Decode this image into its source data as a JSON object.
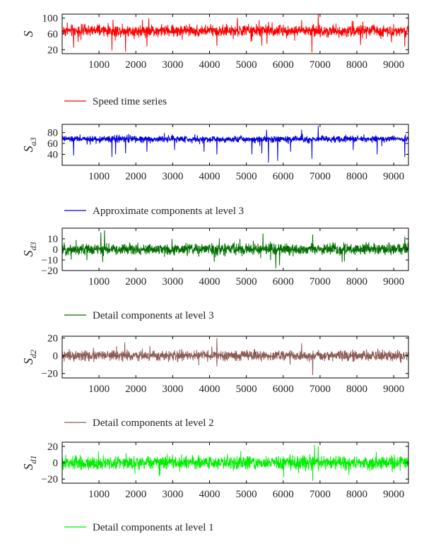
{
  "chart_data": [
    {
      "type": "line",
      "ylabel": "S",
      "ylabel_sub": "",
      "legend": "Speed time series",
      "color": "#ff0000",
      "xlim": [
        0,
        9400
      ],
      "ylim": [
        10,
        110
      ],
      "xticks": [
        1000,
        2000,
        3000,
        4000,
        5000,
        6000,
        7000,
        8000,
        9000
      ],
      "yticks": [
        20,
        60,
        100
      ],
      "signal": {
        "n": 9400,
        "mean": 68,
        "noise": 9,
        "dips": [
          [
            310,
            25
          ],
          [
            1350,
            18
          ],
          [
            1720,
            15
          ],
          [
            2300,
            28
          ],
          [
            4200,
            30
          ],
          [
            5420,
            30
          ],
          [
            5560,
            35
          ],
          [
            6780,
            13
          ],
          [
            8100,
            32
          ],
          [
            9300,
            28
          ]
        ],
        "spikes": [
          [
            5600,
            90
          ],
          [
            6500,
            95
          ],
          [
            6950,
            110
          ]
        ]
      }
    },
    {
      "type": "line",
      "ylabel": "S",
      "ylabel_sub": "a3",
      "legend": "Approximate components at level 3",
      "color": "#0000dd",
      "xlim": [
        0,
        9400
      ],
      "ylim": [
        20,
        95
      ],
      "xticks": [
        1000,
        2000,
        3000,
        4000,
        5000,
        6000,
        7000,
        8000,
        9000
      ],
      "yticks": [
        40,
        60,
        80
      ],
      "signal": {
        "n": 9400,
        "mean": 68,
        "noise": 3.5,
        "dips": [
          [
            310,
            38
          ],
          [
            1350,
            35
          ],
          [
            1450,
            40
          ],
          [
            1720,
            42
          ],
          [
            2300,
            45
          ],
          [
            3050,
            48
          ],
          [
            3850,
            45
          ],
          [
            4200,
            40
          ],
          [
            5150,
            40
          ],
          [
            5420,
            42
          ],
          [
            5600,
            25
          ],
          [
            5850,
            28
          ],
          [
            6200,
            45
          ],
          [
            6780,
            32
          ],
          [
            7900,
            48
          ],
          [
            8550,
            40
          ],
          [
            9300,
            35
          ]
        ],
        "spikes": [
          [
            5550,
            85
          ],
          [
            6500,
            85
          ],
          [
            6950,
            92
          ]
        ]
      }
    },
    {
      "type": "line",
      "ylabel": "S",
      "ylabel_sub": "d3",
      "legend": "Detail components at level 3",
      "color": "#006e00",
      "xlim": [
        0,
        9400
      ],
      "ylim": [
        -20,
        20
      ],
      "xticks": [
        1000,
        2000,
        3000,
        4000,
        5000,
        6000,
        7000,
        8000,
        9000
      ],
      "yticks": [
        -20,
        -10,
        0,
        10
      ],
      "signal": {
        "n": 9400,
        "mean": 0,
        "noise": 3.2,
        "dips": [
          [
            1100,
            -12
          ],
          [
            5800,
            -18
          ],
          [
            5900,
            -15
          ],
          [
            7600,
            -12
          ]
        ],
        "spikes": [
          [
            1050,
            16
          ],
          [
            1150,
            18
          ],
          [
            5450,
            15
          ],
          [
            6800,
            14
          ],
          [
            9300,
            12
          ]
        ]
      }
    },
    {
      "type": "line",
      "ylabel": "S",
      "ylabel_sub": "d2",
      "legend": "Detail components at level 2",
      "color": "#8c5a55",
      "xlim": [
        0,
        9400
      ],
      "ylim": [
        -25,
        22
      ],
      "xticks": [
        1000,
        2000,
        3000,
        4000,
        5000,
        6000,
        7000,
        8000,
        9000
      ],
      "yticks": [
        -20,
        0,
        20
      ],
      "signal": {
        "n": 9400,
        "mean": 0,
        "noise": 3.5,
        "dips": [
          [
            6800,
            -22
          ],
          [
            4200,
            -12
          ]
        ],
        "spikes": [
          [
            1700,
            15
          ],
          [
            4200,
            20
          ],
          [
            6500,
            14
          ]
        ]
      }
    },
    {
      "type": "line",
      "ylabel": "S",
      "ylabel_sub": "d1",
      "legend": "Detail components at level 1",
      "color": "#00ee00",
      "xlim": [
        0,
        9400
      ],
      "ylim": [
        -25,
        25
      ],
      "xticks": [
        1000,
        2000,
        3000,
        4000,
        5000,
        6000,
        7000,
        8000,
        9000
      ],
      "yticks": [
        -20,
        0,
        20
      ],
      "signal": {
        "n": 9400,
        "mean": 0,
        "noise": 5,
        "dips": [
          [
            6800,
            -22
          ]
        ],
        "spikes": [
          [
            6850,
            22
          ],
          [
            6950,
            20
          ]
        ]
      }
    }
  ]
}
